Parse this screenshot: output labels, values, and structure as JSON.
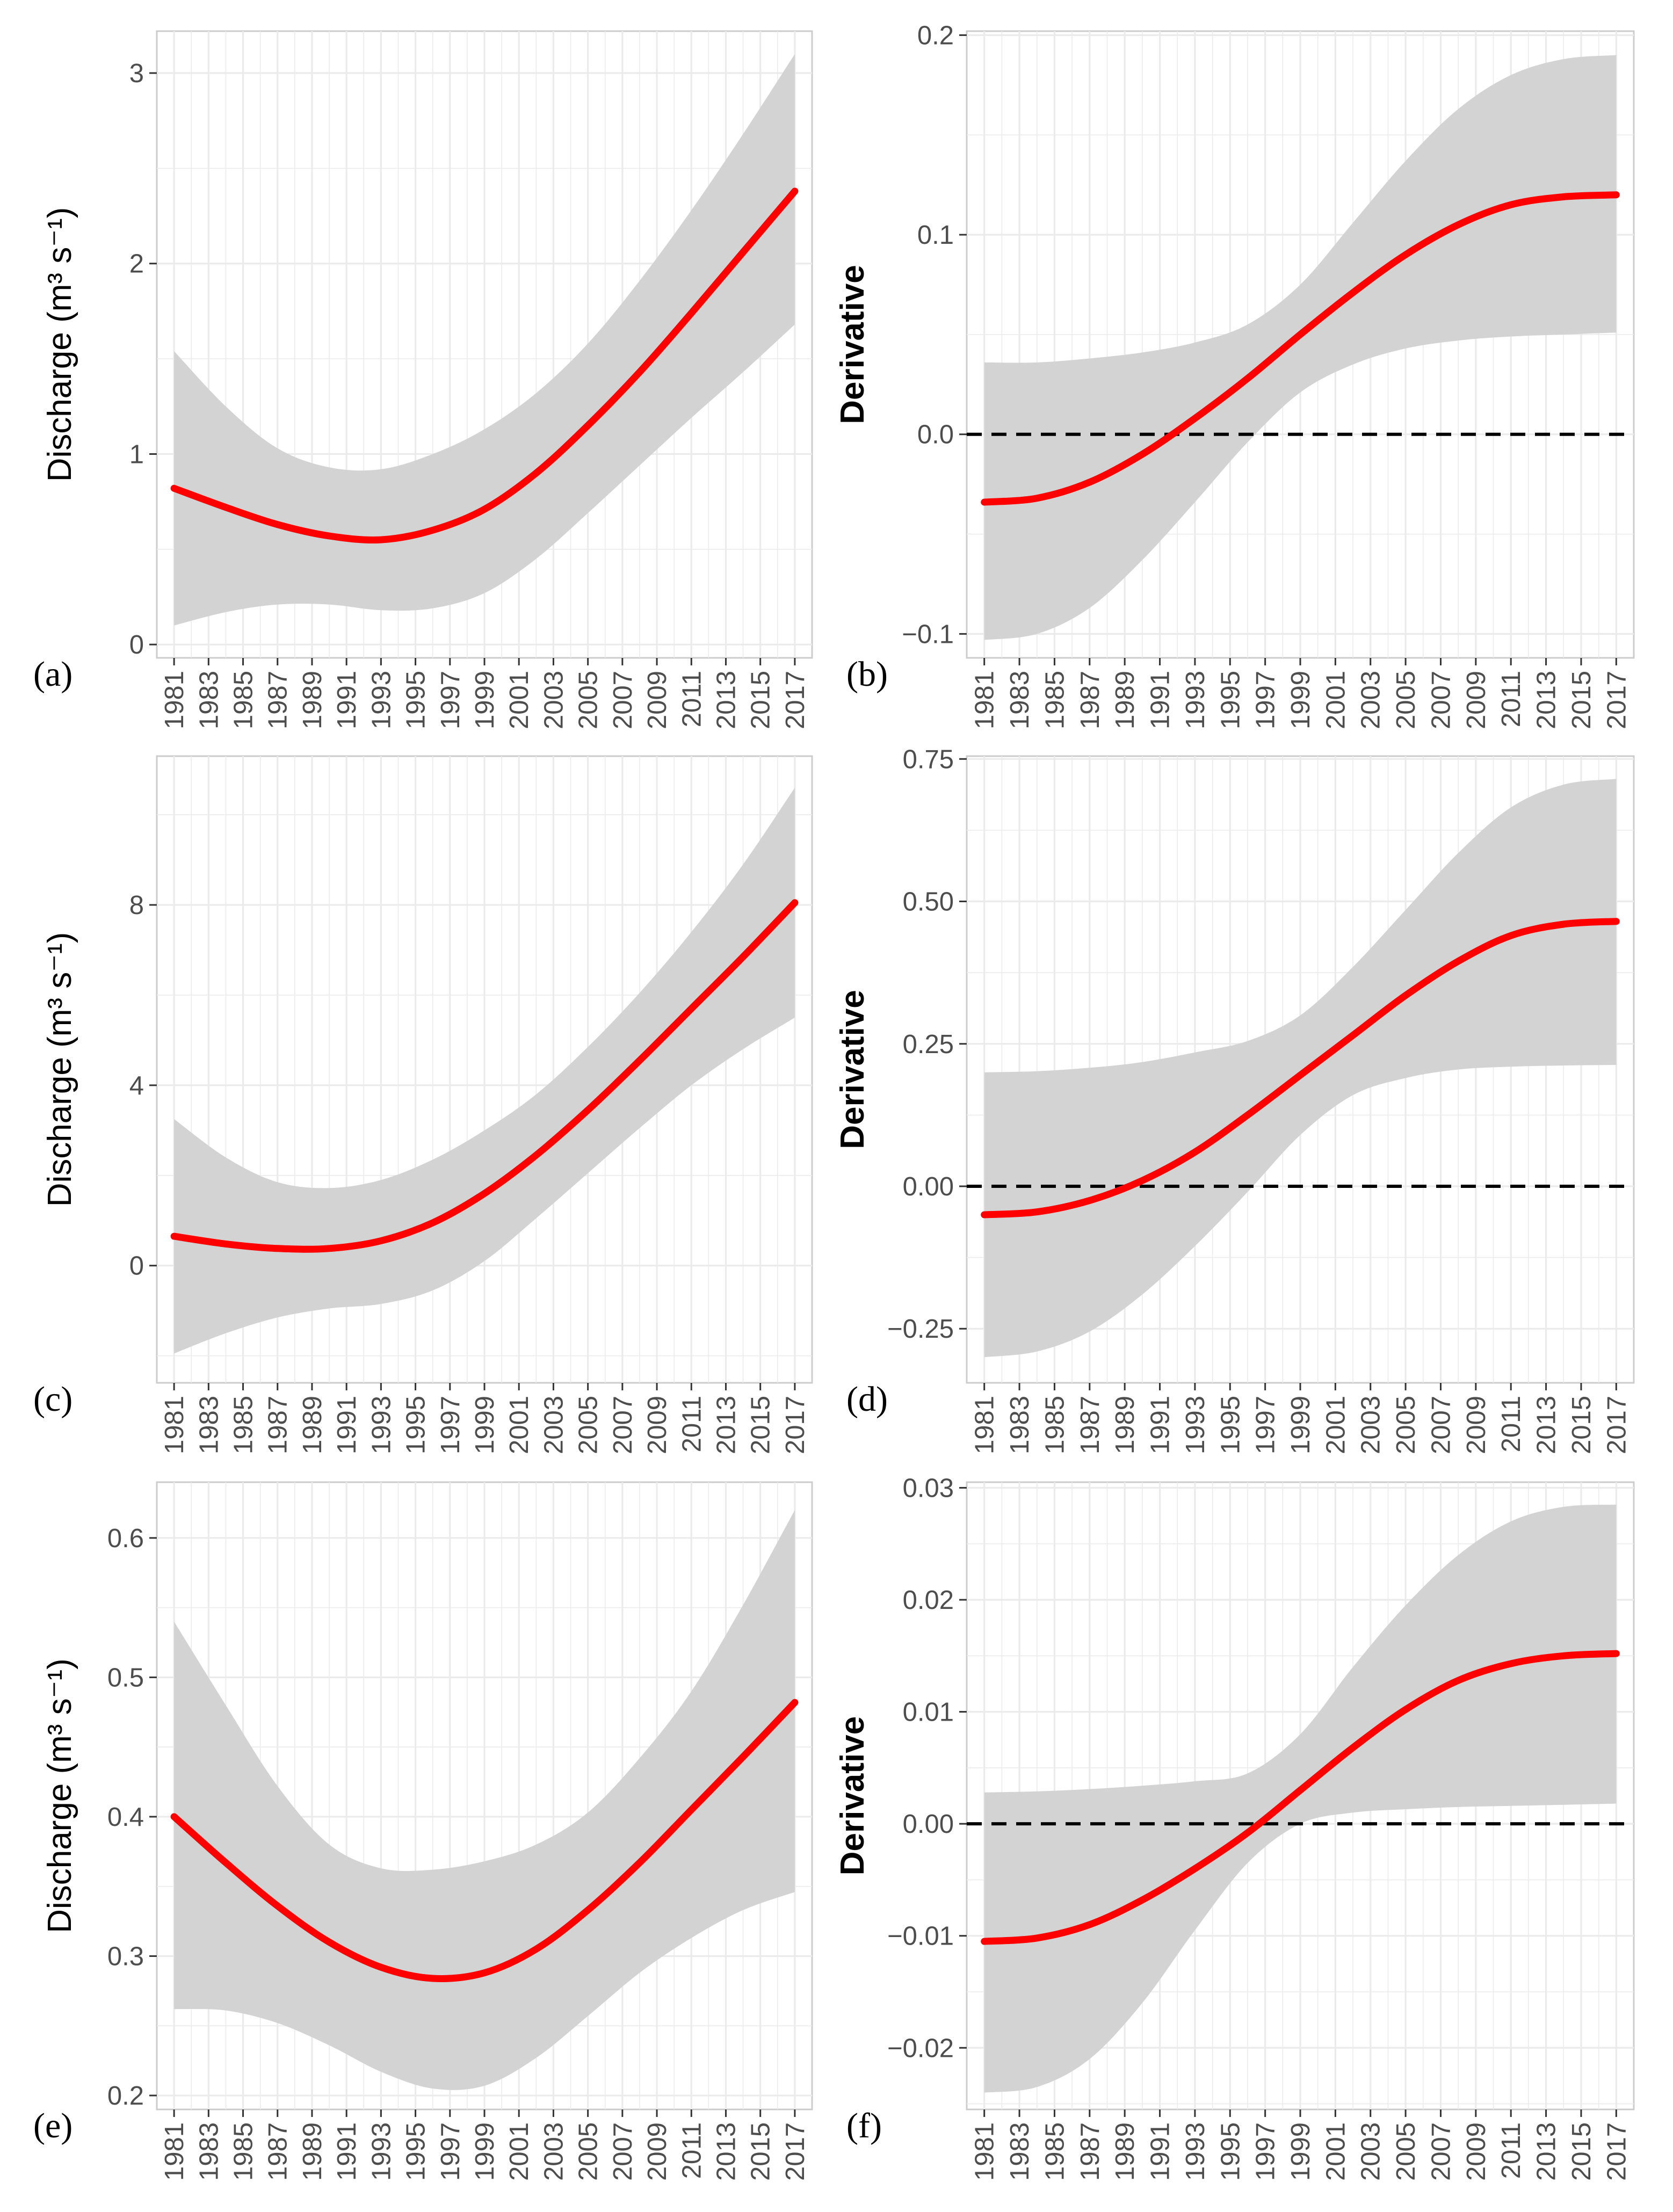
{
  "colors": {
    "line": "#ff0000",
    "band": "#d3d3d3",
    "grid": "#ebebeb",
    "zero_line": "#000000"
  },
  "chart_data": [
    {
      "panel_label": "(a)",
      "type": "line",
      "ylabel": "Discharge (m³ s⁻¹)",
      "xlabel": "",
      "x_ticks": [
        "1981",
        "1983",
        "1985",
        "1987",
        "1989",
        "1991",
        "1993",
        "1995",
        "1997",
        "1999",
        "2001",
        "2003",
        "2005",
        "2007",
        "2009",
        "2011",
        "2013",
        "2015",
        "2017"
      ],
      "y_ticks": [
        "0",
        "1",
        "2",
        "3"
      ],
      "y_tick_values": [
        0,
        1,
        2,
        3
      ],
      "xlim": [
        1980,
        2018
      ],
      "ylim": [
        -0.07,
        3.22
      ],
      "zero_line": false,
      "grid": true,
      "x": [
        1981,
        1984,
        1987,
        1990,
        1993,
        1996,
        1999,
        2002,
        2005,
        2008,
        2011,
        2014,
        2017
      ],
      "fit": [
        0.82,
        0.72,
        0.63,
        0.57,
        0.55,
        0.6,
        0.71,
        0.9,
        1.15,
        1.43,
        1.74,
        2.06,
        2.38
      ],
      "lower": [
        0.1,
        0.17,
        0.21,
        0.21,
        0.18,
        0.19,
        0.27,
        0.45,
        0.69,
        0.94,
        1.19,
        1.43,
        1.68
      ],
      "upper": [
        1.54,
        1.25,
        1.03,
        0.93,
        0.92,
        1.0,
        1.13,
        1.32,
        1.58,
        1.91,
        2.28,
        2.68,
        3.1
      ]
    },
    {
      "panel_label": "(b)",
      "type": "line",
      "ylabel": "Derivative",
      "xlabel": "",
      "x_ticks": [
        "1981",
        "1983",
        "1985",
        "1987",
        "1989",
        "1991",
        "1993",
        "1995",
        "1997",
        "1999",
        "2001",
        "2003",
        "2005",
        "2007",
        "2009",
        "2011",
        "2013",
        "2015",
        "2017"
      ],
      "y_ticks": [
        "−0.1",
        "0.0",
        "0.1",
        "0.2"
      ],
      "y_tick_values": [
        -0.1,
        0.0,
        0.1,
        0.2
      ],
      "xlim": [
        1980,
        2018
      ],
      "ylim": [
        -0.112,
        0.202
      ],
      "zero_line": true,
      "grid": true,
      "x": [
        1981,
        1984,
        1987,
        1990,
        1993,
        1996,
        1999,
        2002,
        2005,
        2008,
        2011,
        2014,
        2017
      ],
      "fit": [
        -0.034,
        -0.032,
        -0.024,
        -0.01,
        0.008,
        0.028,
        0.05,
        0.071,
        0.09,
        0.105,
        0.115,
        0.119,
        0.12
      ],
      "lower": [
        -0.103,
        -0.1,
        -0.087,
        -0.063,
        -0.034,
        -0.004,
        0.021,
        0.035,
        0.043,
        0.047,
        0.049,
        0.05,
        0.051
      ],
      "upper": [
        0.036,
        0.036,
        0.038,
        0.041,
        0.046,
        0.055,
        0.075,
        0.106,
        0.137,
        0.163,
        0.18,
        0.188,
        0.19
      ]
    },
    {
      "panel_label": "(c)",
      "type": "line",
      "ylabel": "Discharge (m³ s⁻¹)",
      "xlabel": "",
      "x_ticks": [
        "1981",
        "1983",
        "1985",
        "1987",
        "1989",
        "1991",
        "1993",
        "1995",
        "1997",
        "1999",
        "2001",
        "2003",
        "2005",
        "2007",
        "2009",
        "2011",
        "2013",
        "2015",
        "2017"
      ],
      "y_ticks": [
        "0",
        "4",
        "8"
      ],
      "y_tick_values": [
        0,
        4,
        8
      ],
      "xlim": [
        1980,
        2018
      ],
      "ylim": [
        -2.6,
        11.3
      ],
      "zero_line": false,
      "grid": true,
      "x": [
        1981,
        1984,
        1987,
        1990,
        1993,
        1996,
        1999,
        2002,
        2005,
        2008,
        2011,
        2014,
        2017
      ],
      "fit": [
        0.65,
        0.48,
        0.38,
        0.38,
        0.55,
        0.95,
        1.6,
        2.45,
        3.45,
        4.55,
        5.7,
        6.85,
        8.05
      ],
      "lower": [
        -1.95,
        -1.5,
        -1.15,
        -0.95,
        -0.85,
        -0.55,
        0.1,
        1.05,
        2.05,
        3.05,
        4.0,
        4.8,
        5.5
      ],
      "upper": [
        3.25,
        2.4,
        1.85,
        1.72,
        1.9,
        2.35,
        3.0,
        3.8,
        4.85,
        6.05,
        7.4,
        8.9,
        10.6
      ]
    },
    {
      "panel_label": "(d)",
      "type": "line",
      "ylabel": "Derivative",
      "xlabel": "",
      "x_ticks": [
        "1981",
        "1983",
        "1985",
        "1987",
        "1989",
        "1991",
        "1993",
        "1995",
        "1997",
        "1999",
        "2001",
        "2003",
        "2005",
        "2007",
        "2009",
        "2011",
        "2013",
        "2015",
        "2017"
      ],
      "y_ticks": [
        "−0.25",
        "0.00",
        "0.25",
        "0.50",
        "0.75"
      ],
      "y_tick_values": [
        -0.25,
        0.0,
        0.25,
        0.5,
        0.75
      ],
      "xlim": [
        1980,
        2018
      ],
      "ylim": [
        -0.345,
        0.755
      ],
      "zero_line": true,
      "grid": true,
      "x": [
        1981,
        1984,
        1987,
        1990,
        1993,
        1996,
        1999,
        2002,
        2005,
        2008,
        2011,
        2014,
        2017
      ],
      "fit": [
        -0.05,
        -0.045,
        -0.025,
        0.01,
        0.06,
        0.125,
        0.195,
        0.265,
        0.335,
        0.395,
        0.44,
        0.46,
        0.465
      ],
      "lower": [
        -0.3,
        -0.29,
        -0.255,
        -0.19,
        -0.105,
        -0.01,
        0.09,
        0.16,
        0.19,
        0.205,
        0.21,
        0.212,
        0.213
      ],
      "upper": [
        0.2,
        0.202,
        0.208,
        0.218,
        0.235,
        0.255,
        0.3,
        0.385,
        0.485,
        0.585,
        0.665,
        0.705,
        0.715
      ]
    },
    {
      "panel_label": "(e)",
      "type": "line",
      "ylabel": "Discharge (m³ s⁻¹)",
      "xlabel": "",
      "x_ticks": [
        "1981",
        "1983",
        "1985",
        "1987",
        "1989",
        "1991",
        "1993",
        "1995",
        "1997",
        "1999",
        "2001",
        "2003",
        "2005",
        "2007",
        "2009",
        "2011",
        "2013",
        "2015",
        "2017"
      ],
      "y_ticks": [
        "0.2",
        "0.3",
        "0.4",
        "0.5",
        "0.6"
      ],
      "y_tick_values": [
        0.2,
        0.3,
        0.4,
        0.5,
        0.6
      ],
      "xlim": [
        1980,
        2018
      ],
      "ylim": [
        0.19,
        0.64
      ],
      "zero_line": false,
      "grid": true,
      "x": [
        1981,
        1984,
        1987,
        1990,
        1993,
        1996,
        1999,
        2002,
        2005,
        2008,
        2011,
        2014,
        2017
      ],
      "fit": [
        0.4,
        0.367,
        0.336,
        0.31,
        0.292,
        0.284,
        0.288,
        0.305,
        0.333,
        0.367,
        0.405,
        0.443,
        0.482
      ],
      "lower": [
        0.262,
        0.261,
        0.252,
        0.236,
        0.217,
        0.205,
        0.207,
        0.227,
        0.257,
        0.288,
        0.313,
        0.333,
        0.346
      ],
      "upper": [
        0.54,
        0.48,
        0.422,
        0.38,
        0.363,
        0.362,
        0.368,
        0.38,
        0.403,
        0.442,
        0.49,
        0.552,
        0.62
      ]
    },
    {
      "panel_label": "(f)",
      "type": "line",
      "ylabel": "Derivative",
      "xlabel": "",
      "x_ticks": [
        "1981",
        "1983",
        "1985",
        "1987",
        "1989",
        "1991",
        "1993",
        "1995",
        "1997",
        "1999",
        "2001",
        "2003",
        "2005",
        "2007",
        "2009",
        "2011",
        "2013",
        "2015",
        "2017"
      ],
      "y_ticks": [
        "−0.02",
        "−0.01",
        "0.00",
        "0.01",
        "0.02",
        "0.03"
      ],
      "y_tick_values": [
        -0.02,
        -0.01,
        0.0,
        0.01,
        0.02,
        0.03
      ],
      "xlim": [
        1980,
        2018
      ],
      "ylim": [
        -0.0255,
        0.0305
      ],
      "zero_line": true,
      "grid": true,
      "x": [
        1981,
        1984,
        1987,
        1990,
        1993,
        1996,
        1999,
        2002,
        2005,
        2008,
        2011,
        2014,
        2017
      ],
      "fit": [
        -0.0105,
        -0.0102,
        -0.009,
        -0.0068,
        -0.004,
        -0.0008,
        0.003,
        0.0068,
        0.0102,
        0.0128,
        0.0143,
        0.015,
        0.0152
      ],
      "lower": [
        -0.024,
        -0.0235,
        -0.021,
        -0.016,
        -0.0095,
        -0.0035,
        0.0,
        0.001,
        0.0013,
        0.0015,
        0.0016,
        0.0017,
        0.0018
      ],
      "upper": [
        0.0028,
        0.0029,
        0.0031,
        0.0034,
        0.0038,
        0.0045,
        0.008,
        0.014,
        0.0195,
        0.024,
        0.027,
        0.0283,
        0.0285
      ]
    }
  ]
}
